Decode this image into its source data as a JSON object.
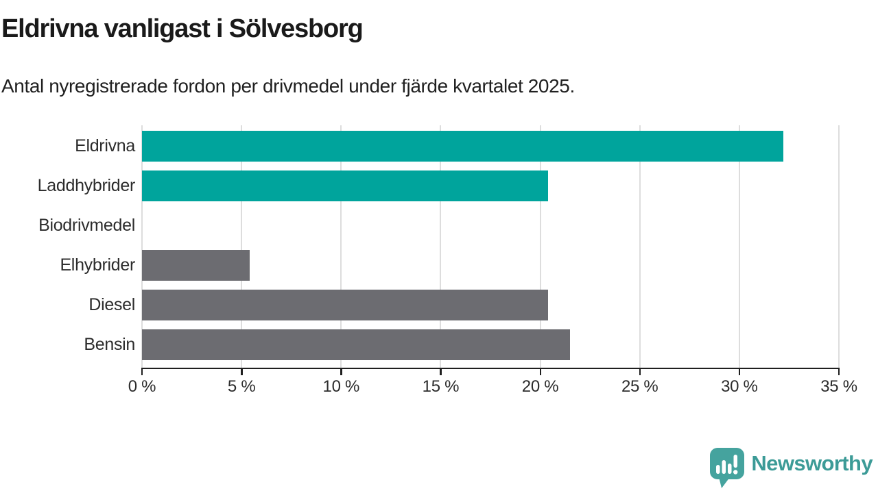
{
  "header": {
    "title": "Eldrivna vanligast i Sölvesborg",
    "subtitle": "Antal nyregistrerade fordon per drivmedel under fjärde kvartalet 2025."
  },
  "chart_data": {
    "type": "bar",
    "orientation": "horizontal",
    "title": "Eldrivna vanligast i Sölvesborg",
    "subtitle": "Antal nyregistrerade fordon per drivmedel under fjärde kvartalet 2025.",
    "categories": [
      "Eldrivna",
      "Laddhybrider",
      "Biodrivmedel",
      "Elhybrider",
      "Diesel",
      "Bensin"
    ],
    "values": [
      32.2,
      20.4,
      0,
      5.4,
      20.4,
      21.5
    ],
    "unit": "%",
    "xlim": [
      0,
      35
    ],
    "x_ticks": [
      0,
      5,
      10,
      15,
      20,
      25,
      30,
      35
    ],
    "x_tick_labels": [
      "0 %",
      "5 %",
      "10 %",
      "15 %",
      "20 %",
      "25 %",
      "30 %",
      "35 %"
    ],
    "bar_colors": [
      "#00a49c",
      "#00a49c",
      "#00a49c",
      "#6c6c71",
      "#6c6c71",
      "#6c6c71"
    ],
    "grid": true,
    "legend": false,
    "colors": {
      "teal": "#00a49c",
      "gray": "#6c6c71",
      "gridline": "#dddddd",
      "axis": "#1f1f1f"
    }
  },
  "branding": {
    "logo_text": "Newsworthy",
    "logo_icon": "bar-chart-speech-bubble-icon",
    "logo_icon_color": "#45a39e",
    "logo_text_color": "#3c9b97"
  }
}
